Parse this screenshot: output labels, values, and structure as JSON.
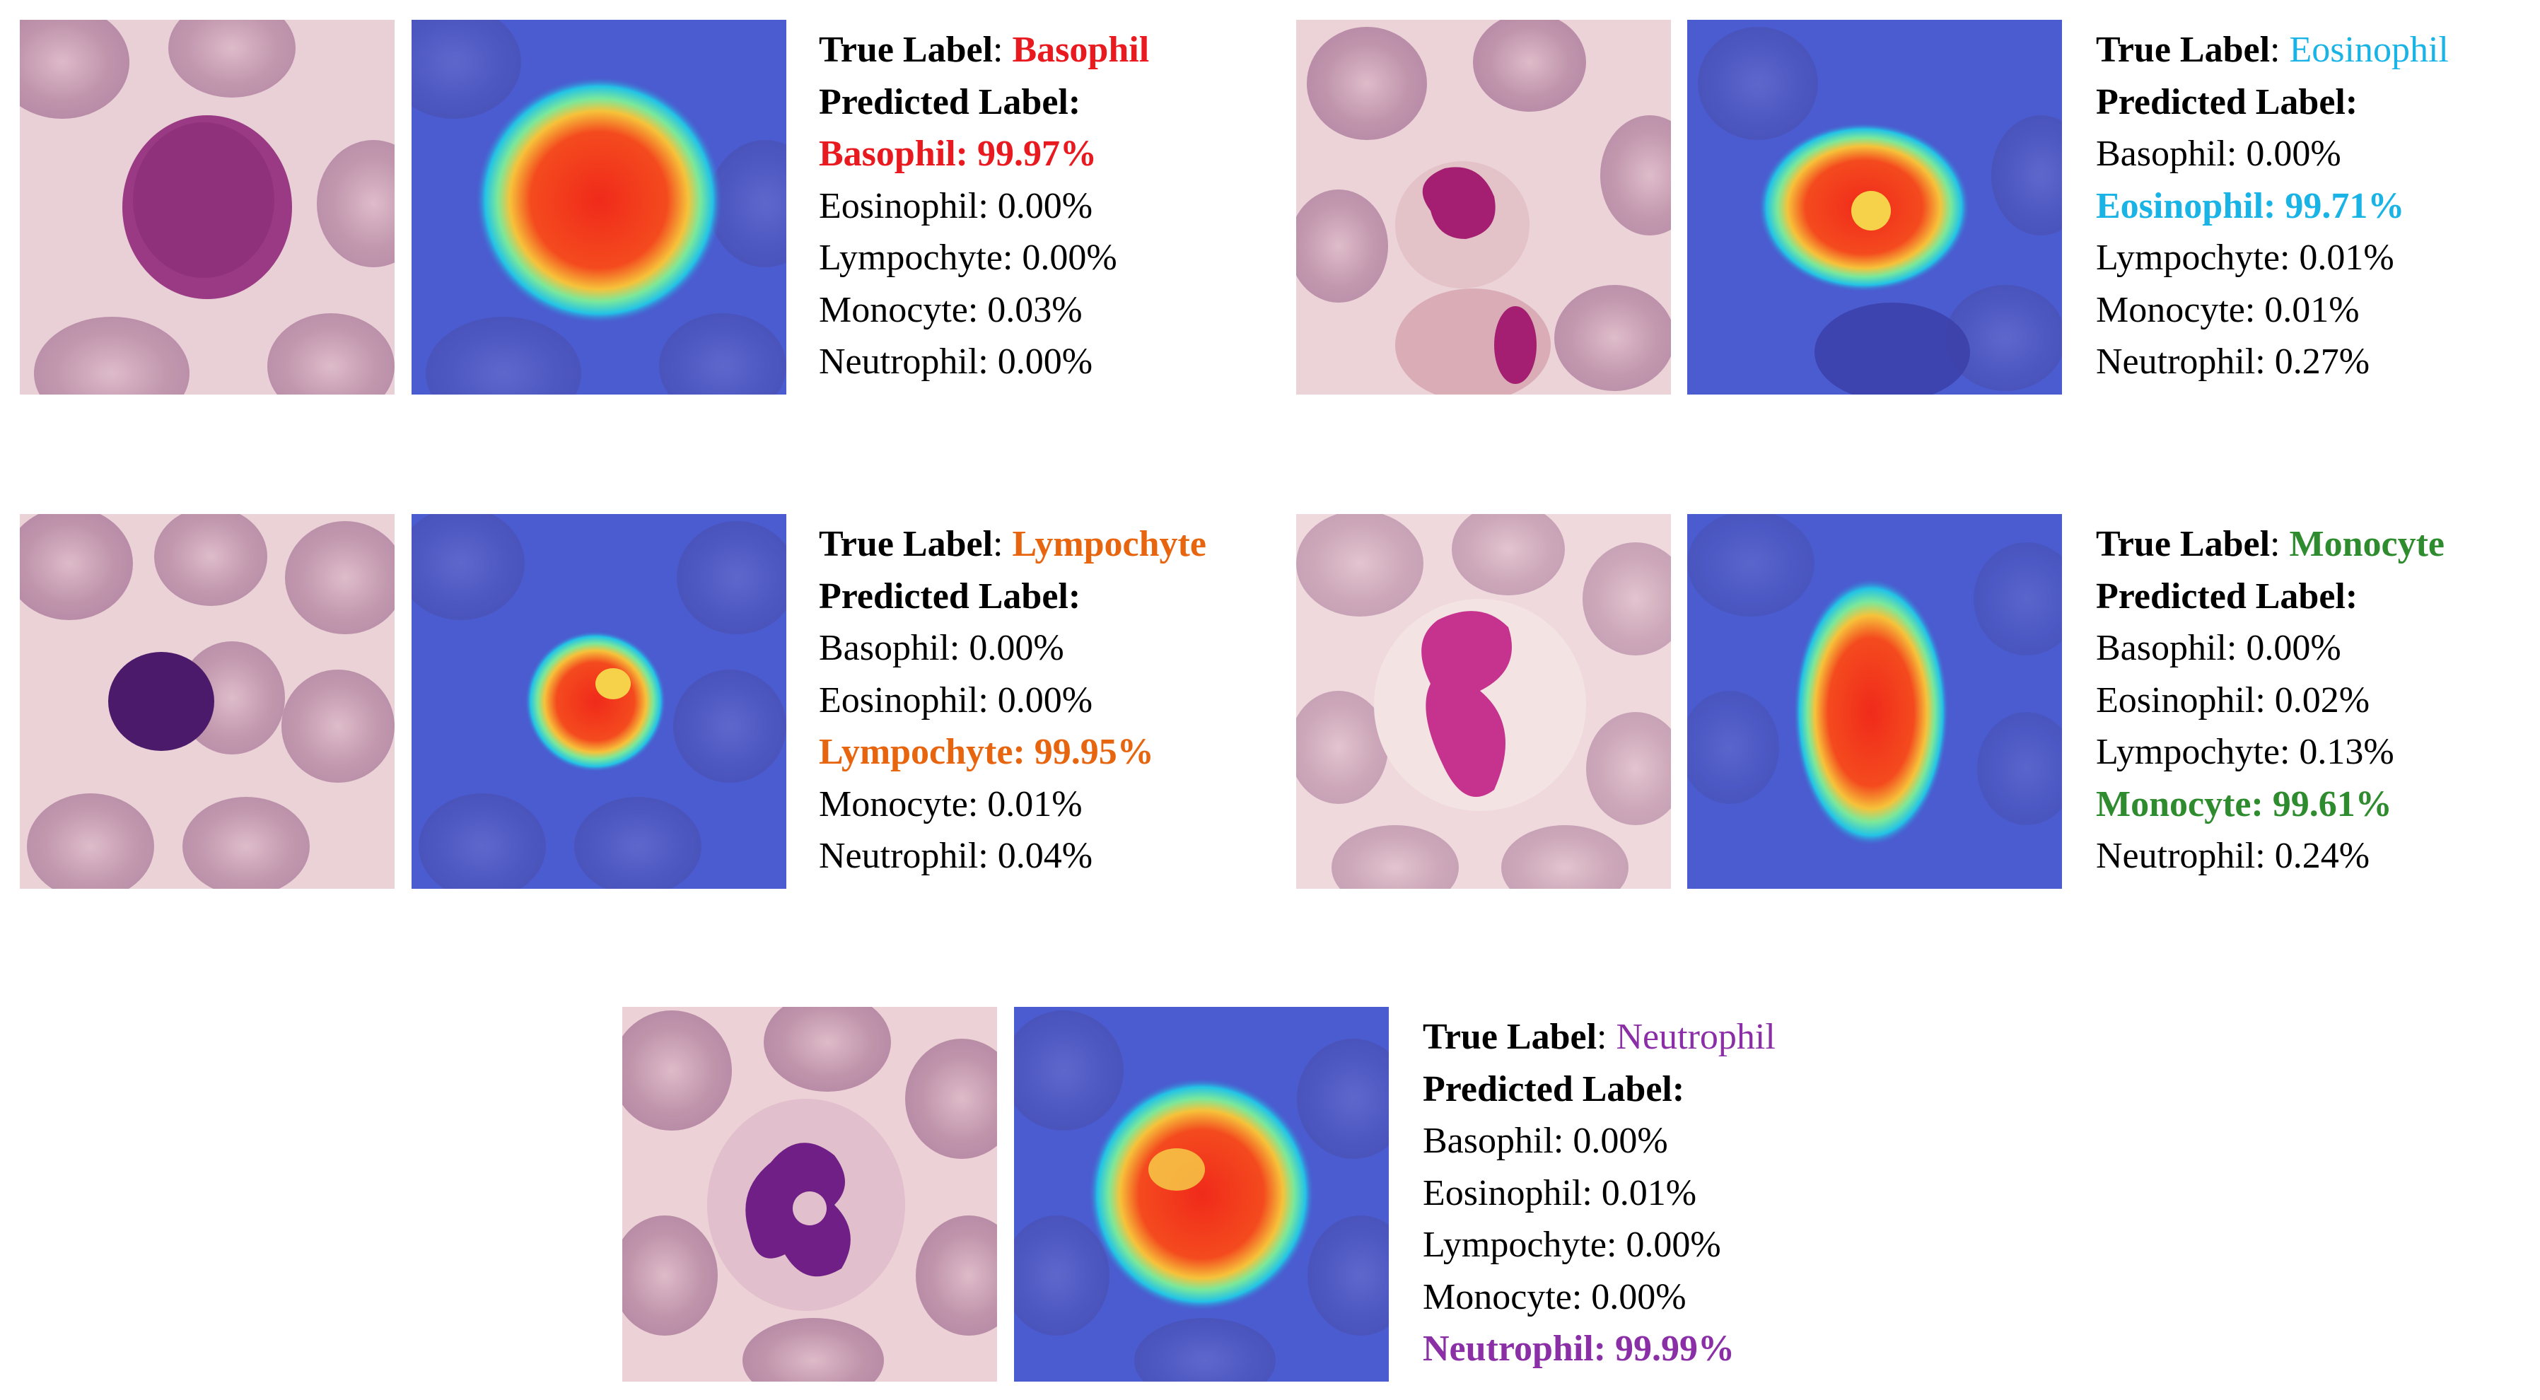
{
  "colors": {
    "basophil": "#e8191f",
    "eosinophil": "#1ab3e6",
    "lympochyte": "#e8650f",
    "monocyte": "#2e8b2e",
    "neutrophil": "#8a2fa6",
    "rbc": "#b98aa3",
    "background_smear": "#efd7d9",
    "heatmap_bg": "#4a5ccf"
  },
  "common": {
    "true_label": "True Label",
    "colon": ":",
    "predicted_label": "Predicted Label:"
  },
  "panels": [
    {
      "id": "basophil",
      "true_value": "Basophil",
      "predictions": [
        {
          "text": "Basophil: 99.97%",
          "highlight": true
        },
        {
          "text": "Eosinophil: 0.00%",
          "highlight": false
        },
        {
          "text": "Lympochyte: 0.00%",
          "highlight": false
        },
        {
          "text": "Monocyte: 0.03%",
          "highlight": false
        },
        {
          "text": "Neutrophil: 0.00%",
          "highlight": false
        }
      ]
    },
    {
      "id": "eosinophil",
      "true_value": "Eosinophil",
      "predictions": [
        {
          "text": "Basophil: 0.00%",
          "highlight": false
        },
        {
          "text": "Eosinophil: 99.71%",
          "highlight": true
        },
        {
          "text": "Lympochyte: 0.01%",
          "highlight": false
        },
        {
          "text": "Monocyte: 0.01%",
          "highlight": false
        },
        {
          "text": "Neutrophil: 0.27%",
          "highlight": false
        }
      ]
    },
    {
      "id": "lympochyte",
      "true_value": "Lympochyte",
      "predictions": [
        {
          "text": "Basophil: 0.00%",
          "highlight": false
        },
        {
          "text": "Eosinophil: 0.00%",
          "highlight": false
        },
        {
          "text": "Lympochyte: 99.95%",
          "highlight": true
        },
        {
          "text": "Monocyte: 0.01%",
          "highlight": false
        },
        {
          "text": "Neutrophil: 0.04%",
          "highlight": false
        }
      ]
    },
    {
      "id": "monocyte",
      "true_value": "Monocyte",
      "predictions": [
        {
          "text": "Basophil: 0.00%",
          "highlight": false
        },
        {
          "text": "Eosinophil: 0.02%",
          "highlight": false
        },
        {
          "text": "Lympochyte: 0.13%",
          "highlight": false
        },
        {
          "text": "Monocyte: 99.61%",
          "highlight": true
        },
        {
          "text": "Neutrophil: 0.24%",
          "highlight": false
        }
      ]
    },
    {
      "id": "neutrophil",
      "true_value": "Neutrophil",
      "predictions": [
        {
          "text": "Basophil: 0.00%",
          "highlight": false
        },
        {
          "text": "Eosinophil: 0.01%",
          "highlight": false
        },
        {
          "text": "Lympochyte: 0.00%",
          "highlight": false
        },
        {
          "text": "Monocyte: 0.00%",
          "highlight": false
        },
        {
          "text": "Neutrophil: 99.99%",
          "highlight": true
        }
      ]
    }
  ]
}
